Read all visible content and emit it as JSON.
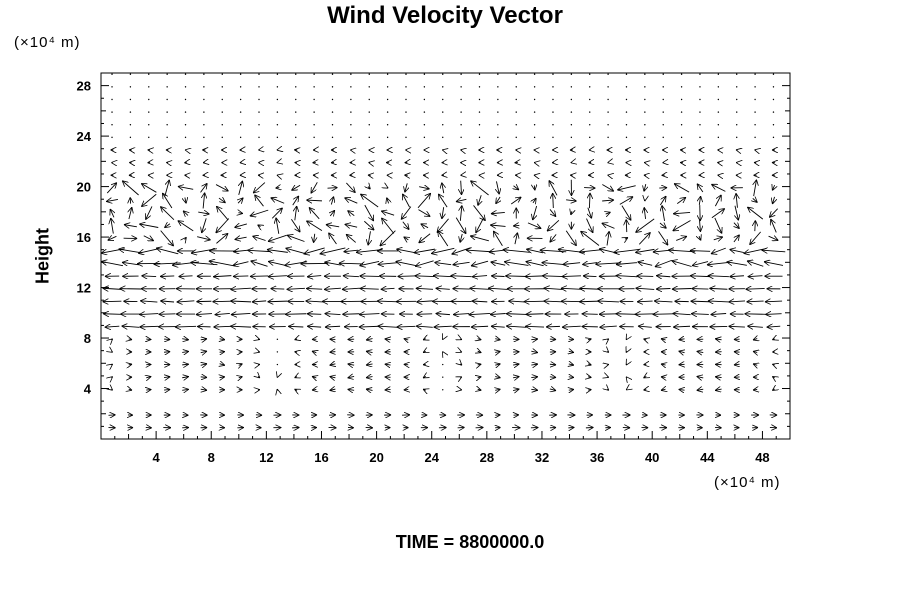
{
  "chart_data": {
    "type": "vector_field",
    "title": "Wind Velocity Vector",
    "ylabel": "Height",
    "xlabel": "",
    "x_unit": "(×10⁴ m)",
    "y_unit": "(×10⁴ m)",
    "footer": "TIME = 8800000.0",
    "xlim": [
      0,
      50
    ],
    "ylim": [
      0,
      29
    ],
    "x_ticks": [
      4,
      8,
      12,
      16,
      20,
      24,
      28,
      32,
      36,
      40,
      44,
      48
    ],
    "y_ticks": [
      4,
      8,
      12,
      16,
      20,
      24,
      28
    ],
    "grid": false,
    "grid_x_spacing": 2,
    "grid_y_spacing": 1,
    "bands": [
      {
        "y_min": 0.5,
        "y_max": 2.5,
        "u_mean": 1.2,
        "v_mean": 0.0,
        "variability": 0.3,
        "note": "lower eastward flow"
      },
      {
        "y_min": 3,
        "y_max": 5,
        "u_mean": 0.8,
        "v_mean": 0.0,
        "variability": 0.4,
        "note": "weak flow"
      },
      {
        "y_min": 5,
        "y_max": 8,
        "u_mean": 0.2,
        "v_mean": 0.0,
        "variability": 0.6,
        "note": "mixed weak flow"
      },
      {
        "y_min": 8,
        "y_max": 13,
        "u_mean": -3.2,
        "v_mean": 0.0,
        "variability": 0.8,
        "note": "strong westward jet"
      },
      {
        "y_min": 13,
        "y_max": 15,
        "u_mean": -3.8,
        "v_mean": 0.0,
        "variability": 1.2,
        "note": "jet core"
      },
      {
        "y_min": 15,
        "y_max": 20.5,
        "u_mean": -0.5,
        "v_mean": 0.0,
        "variability": 3.0,
        "note": "turbulent layer"
      },
      {
        "y_min": 20.5,
        "y_max": 23,
        "u_mean": -0.4,
        "v_mean": 0.0,
        "variability": 0.2,
        "note": "weak upper flow"
      },
      {
        "y_min": 23,
        "y_max": 29,
        "u_mean": 0.0,
        "v_mean": 0.0,
        "variability": 0.05,
        "note": "near calm"
      }
    ]
  }
}
